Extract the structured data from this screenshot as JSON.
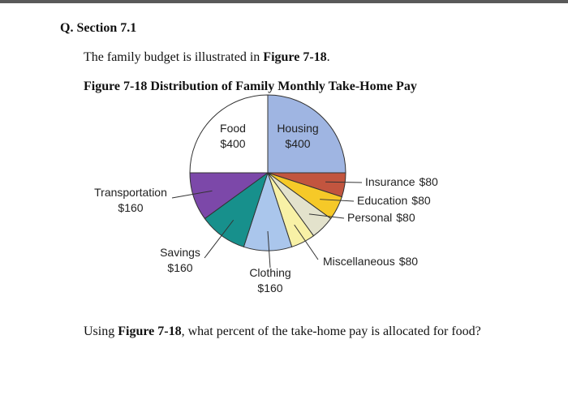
{
  "heading": "Q. Section 7.1",
  "intro": {
    "before": "The family budget is illustrated in ",
    "figure_ref": "Figure 7-18",
    "after": "."
  },
  "chart_data": {
    "type": "pie",
    "title": "Figure 7-18 Distribution of Family Monthly Take-Home Pay",
    "categories": [
      "Housing",
      "Insurance",
      "Education",
      "Personal",
      "Miscellaneous",
      "Clothing",
      "Savings",
      "Transportation",
      "Food"
    ],
    "values": [
      400,
      80,
      80,
      80,
      80,
      160,
      160,
      160,
      400
    ],
    "value_labels": [
      "$400",
      "$80",
      "$80",
      "$80",
      "$80",
      "$160",
      "$160",
      "$160",
      "$400"
    ],
    "colors": [
      "#9fb5e2",
      "#c2553f",
      "#f6c928",
      "#e3e2cc",
      "#f8f1a6",
      "#aac6ec",
      "#17908c",
      "#7c48a9",
      "#ffffff"
    ]
  },
  "question": {
    "before": "Using ",
    "figure_ref": "Figure 7-18",
    "after": ", what percent of the take-home pay is allocated for food?"
  }
}
